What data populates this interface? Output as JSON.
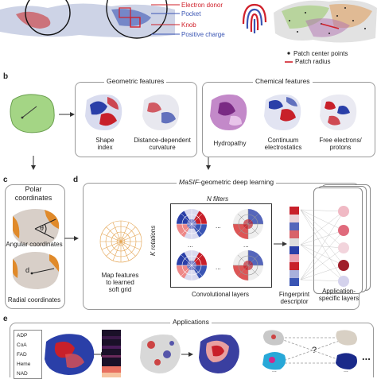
{
  "panel_a": {
    "legend_top": [
      "Electron donor",
      "Pocket",
      "Knob",
      "Positive charge"
    ],
    "legend_top_colors": [
      "#d0202a",
      "#3a55b4",
      "#d0202a",
      "#3a55b4"
    ],
    "legend_right": [
      "Patch center points",
      "Patch radius"
    ]
  },
  "panel_b": {
    "letter": "b",
    "geometric_title": "Geometric features",
    "chemical_title": "Chemical features",
    "features": [
      "Shape\nindex",
      "Distance-dependent\ncurvature",
      "Hydropathy",
      "Continuum\nelectrostatics",
      "Free electrons/\nprotons"
    ]
  },
  "panel_c": {
    "letter": "c",
    "title": "Polar\ncoordinates",
    "angular": "Angular coordinates",
    "radial": "Radial coordinates",
    "theta_symbol": "θ",
    "d_symbol": "d"
  },
  "panel_d": {
    "letter": "d",
    "title_italic": "MaSIF",
    "title_rest": "-geometric deep learning",
    "n_filters": "N filters",
    "k_rotations": "K rotations",
    "map_features": "Map features\nto learned\nsoft grid",
    "conv_layers": "Convolutional layers",
    "fingerprint": "Fingerprint\ndescriptor",
    "app_layers": "Application-\nspecific layers",
    "ellipsis": "..."
  },
  "panel_e": {
    "letter": "e",
    "title": "Applications",
    "ligands": [
      "ADP",
      "CoA",
      "FAD",
      "Heme",
      "NAD"
    ],
    "question": "?",
    "ellipsis": "..."
  },
  "colors": {
    "red": "#c8202a",
    "blue": "#2a3fa8",
    "green": "#8cc870",
    "purple": "#9a4ca0",
    "orange": "#e08a2a"
  }
}
